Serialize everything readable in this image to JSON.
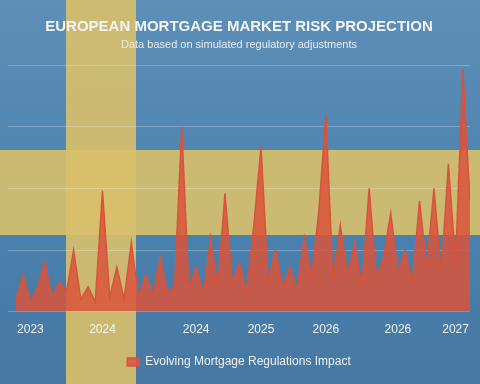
{
  "chart_data": {
    "type": "area",
    "title": "EUROPEAN MORTGAGE MARKET RISK PROJECTION",
    "subtitle": "Data based on simulated regulatory adjustments",
    "categories": [
      null,
      null,
      "2023",
      null,
      null,
      null,
      null,
      null,
      null,
      null,
      null,
      null,
      "2024",
      null,
      null,
      null,
      null,
      null,
      null,
      null,
      null,
      null,
      null,
      null,
      null,
      "2024",
      null,
      null,
      null,
      null,
      null,
      null,
      null,
      null,
      "2025",
      null,
      null,
      null,
      null,
      null,
      null,
      null,
      null,
      "2026",
      null,
      null,
      null,
      null,
      null,
      null,
      null,
      null,
      null,
      "2026",
      null,
      null,
      null,
      null,
      null,
      null,
      null,
      "2027",
      null,
      null
    ],
    "series": [
      {
        "name": "Evolving Mortgage Regulations Impact",
        "color": "#d9533b",
        "values": [
          5,
          15,
          4,
          10,
          20,
          6,
          12,
          8,
          25,
          5,
          10,
          4,
          49,
          6,
          18,
          5,
          28,
          6,
          15,
          7,
          22,
          8,
          10,
          75,
          9,
          18,
          7,
          30,
          10,
          48,
          12,
          20,
          8,
          35,
          67,
          12,
          25,
          10,
          18,
          9,
          30,
          14,
          40,
          80,
          12,
          35,
          15,
          28,
          10,
          50,
          14,
          22,
          40,
          16,
          25,
          12,
          45,
          18,
          50,
          15,
          60,
          20,
          98,
          45
        ]
      }
    ],
    "ylim": [
      0,
      100
    ],
    "yticks": [
      0,
      25,
      50,
      75,
      100
    ],
    "grid": true,
    "legend": "bottom",
    "tick_labels": "x"
  }
}
